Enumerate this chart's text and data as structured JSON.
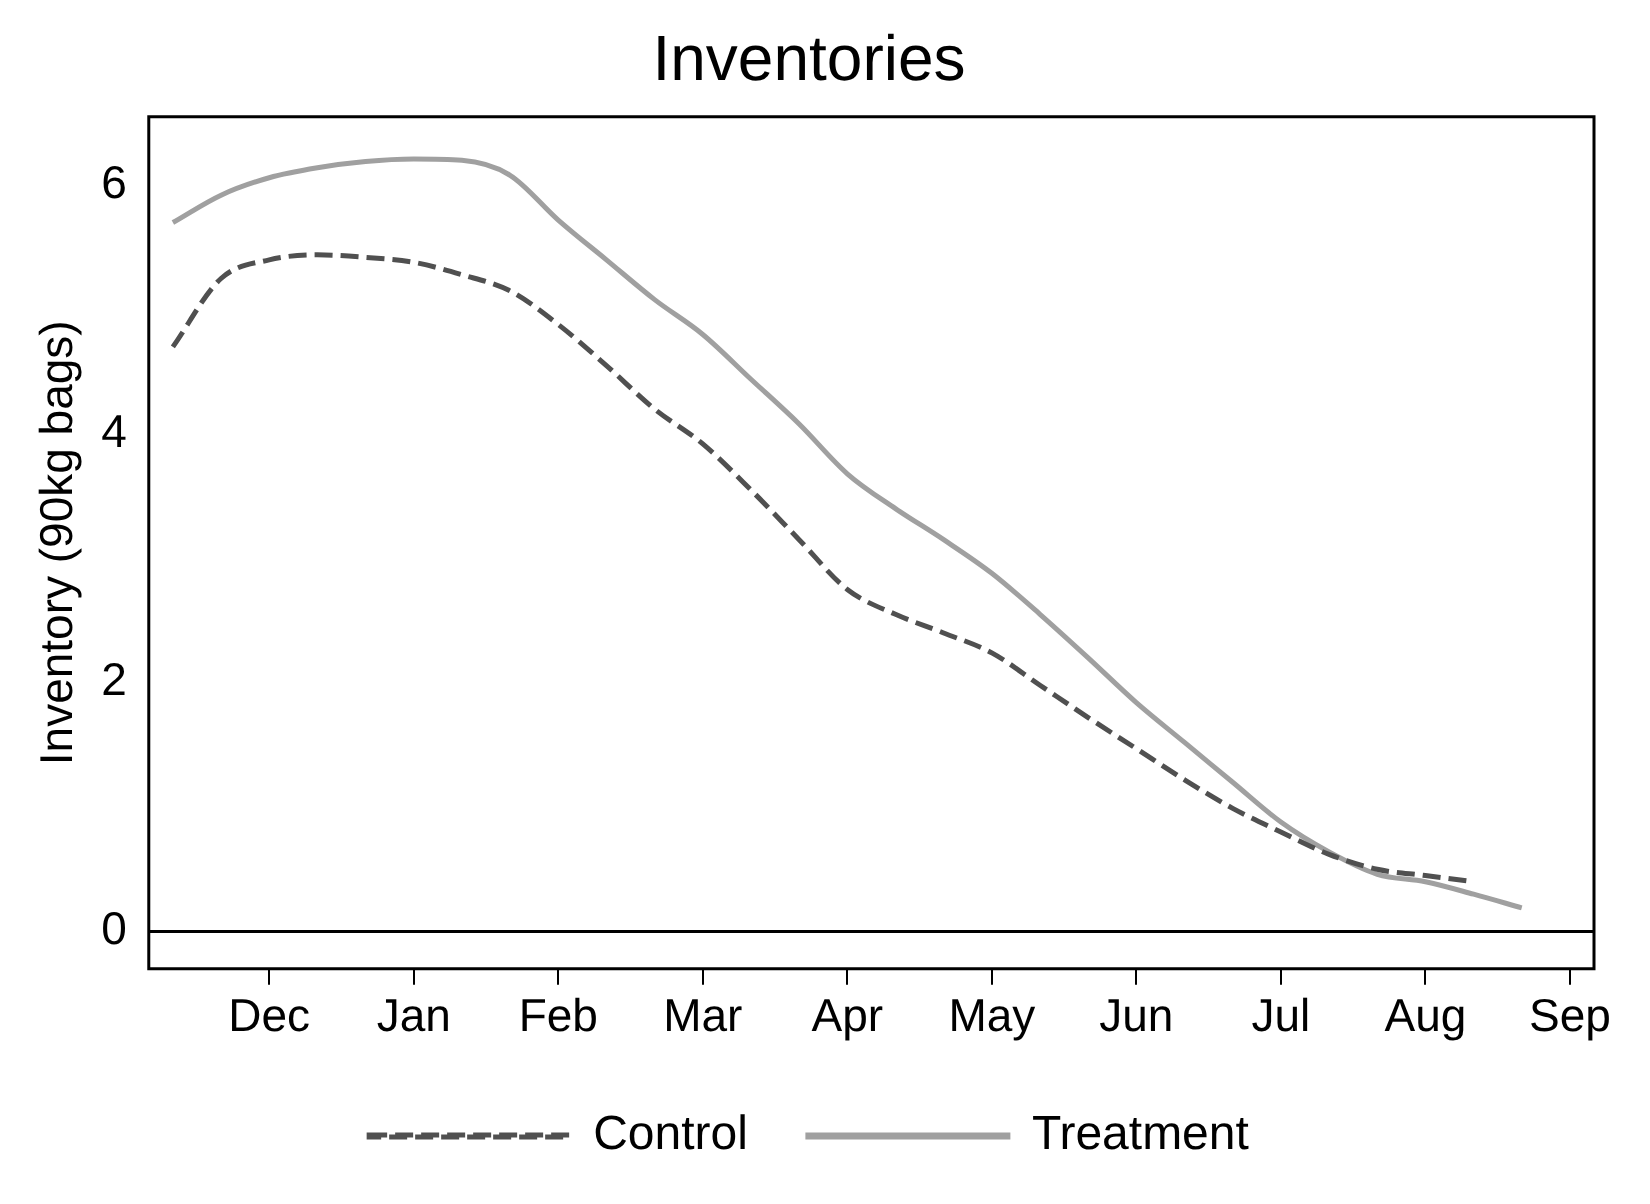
{
  "chart_data": {
    "type": "line",
    "title": "Inventories",
    "ylabel": "Inventory (90kg bags)",
    "categories": [
      null,
      null,
      "Dec",
      null,
      null,
      "Jan",
      null,
      null,
      "Feb",
      null,
      null,
      "Mar",
      null,
      null,
      "Apr",
      null,
      null,
      "May",
      null,
      null,
      "Jun",
      null,
      null,
      "Jul",
      null,
      null,
      "Aug",
      null,
      null,
      "Sep"
    ],
    "ylim": [
      -0.3,
      6.55
    ],
    "yticks": [
      0,
      2,
      4,
      6
    ],
    "grid": false,
    "legend": "bottom",
    "marker": "none",
    "ref_lines": [
      {
        "axis": "y",
        "value": 0,
        "color": "#000000"
      }
    ],
    "series": [
      {
        "name": "Control",
        "color": "#505050",
        "line_style": "dashed",
        "values": [
          4.7,
          5.25,
          5.4,
          5.44,
          5.42,
          5.38,
          5.28,
          5.15,
          4.88,
          4.55,
          4.2,
          3.92,
          3.55,
          3.15,
          2.75,
          2.55,
          2.4,
          2.24,
          1.98,
          1.72,
          1.47,
          1.22,
          0.99,
          0.8,
          0.62,
          0.5,
          0.45,
          0.4,
          null,
          null
        ]
      },
      {
        "name": "Treatment",
        "color": "#a0a0a0",
        "line_style": "solid",
        "values": [
          5.7,
          5.92,
          6.06,
          6.14,
          6.19,
          6.21,
          6.2,
          6.08,
          5.72,
          5.4,
          5.08,
          4.8,
          4.44,
          4.08,
          3.68,
          3.4,
          3.15,
          2.88,
          2.55,
          2.2,
          1.84,
          1.52,
          1.2,
          0.88,
          0.64,
          0.46,
          0.4,
          0.3,
          0.19,
          null
        ]
      }
    ]
  }
}
